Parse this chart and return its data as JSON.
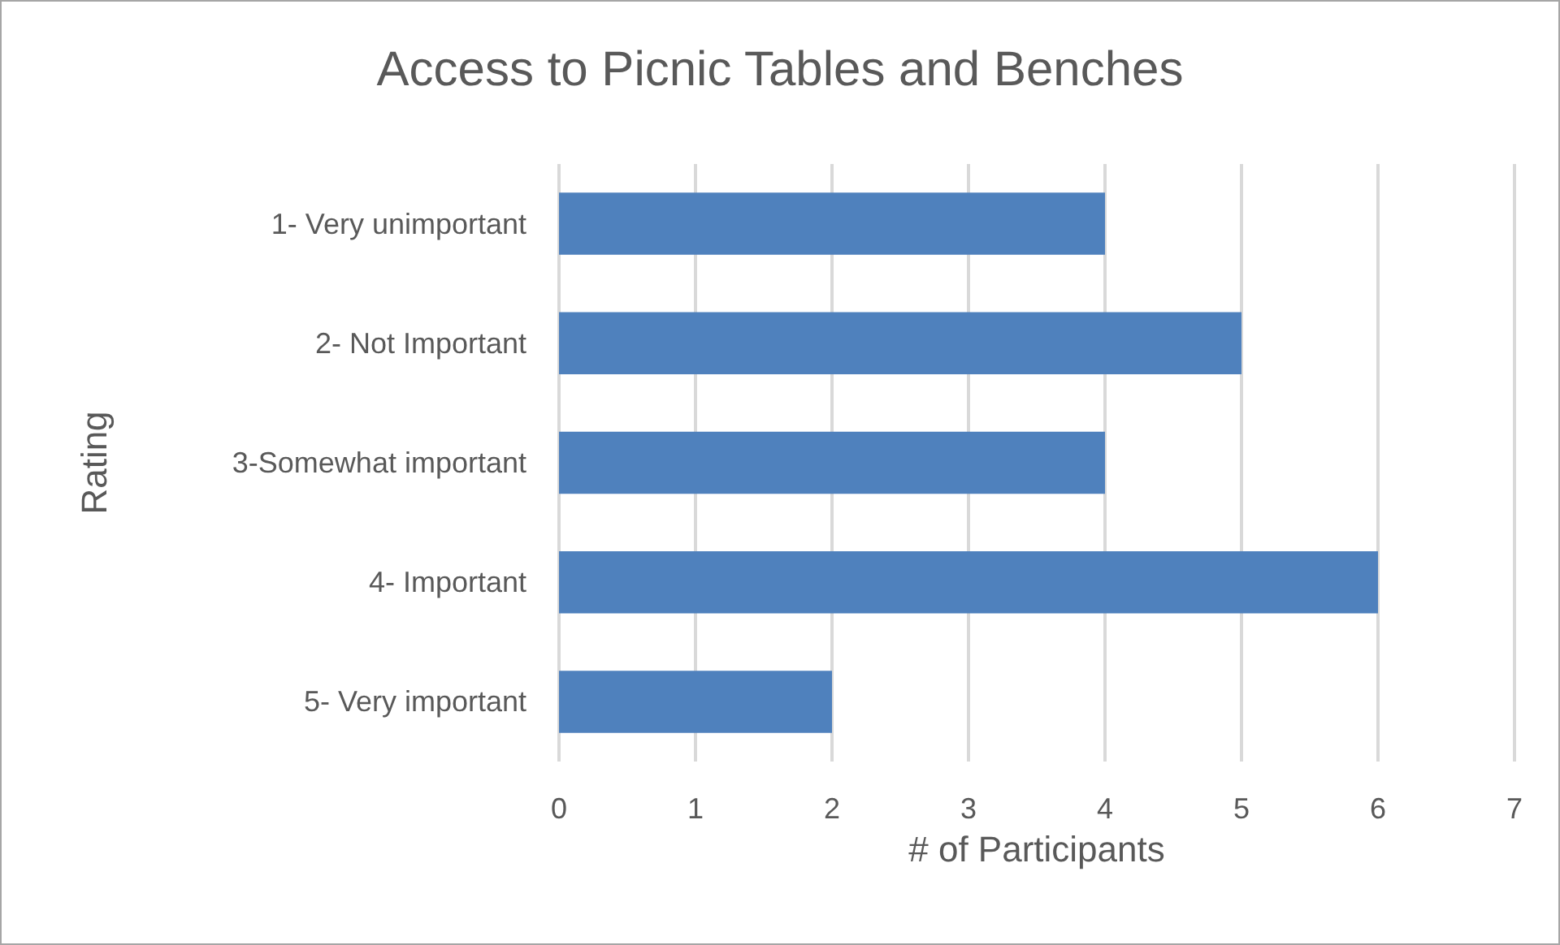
{
  "chart_data": {
    "type": "bar",
    "orientation": "horizontal",
    "title": "Access to Picnic Tables and Benches",
    "xlabel": "# of Participants",
    "ylabel": "Rating",
    "categories": [
      "1- Very unimportant",
      "2- Not Important",
      "3-Somewhat important",
      "4- Important",
      "5- Very important"
    ],
    "values": [
      4,
      5,
      4,
      6,
      2
    ],
    "color": "#4f81bd",
    "xlim": [
      0,
      7
    ],
    "xticks": [
      0,
      1,
      2,
      3,
      4,
      5,
      6,
      7
    ],
    "grid": "x"
  }
}
